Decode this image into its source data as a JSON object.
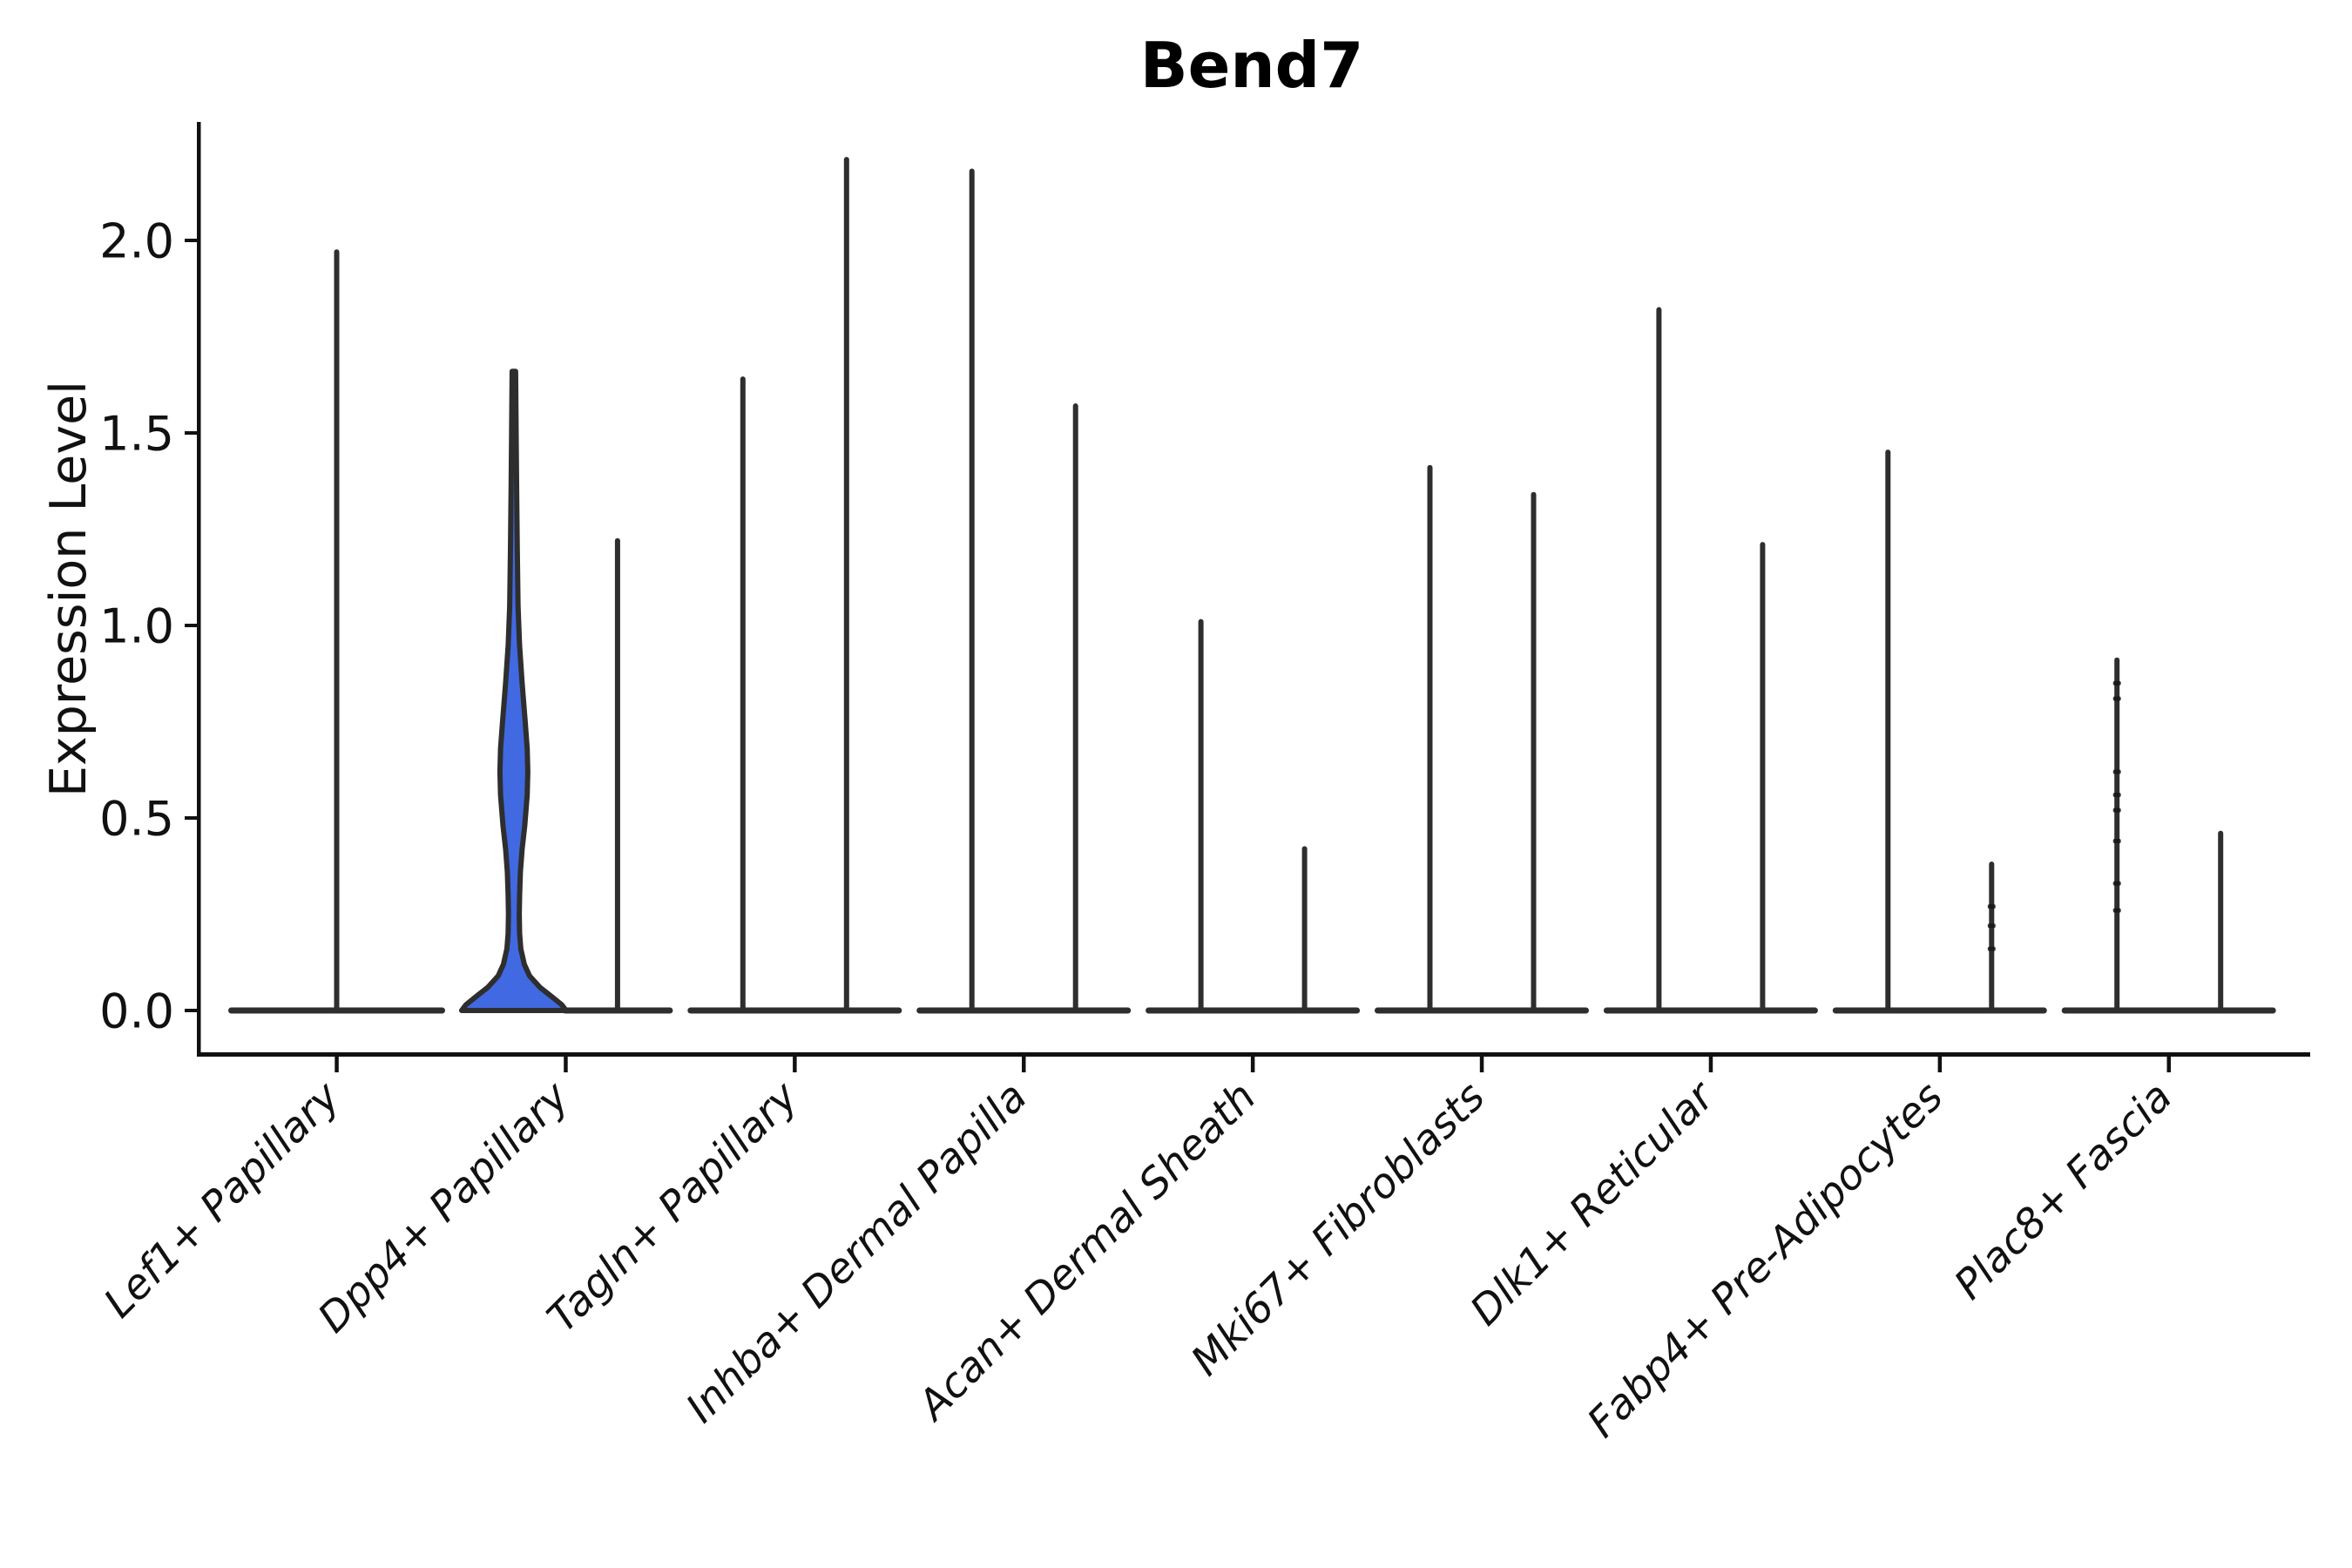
{
  "chart_data": {
    "type": "violin",
    "title": "Bend7",
    "ylabel": "Expression Level",
    "xlabel": "",
    "ylim": [
      -0.113,
      2.308
    ],
    "yticks": [
      {
        "value": 0.0,
        "label": "0.0"
      },
      {
        "value": 0.5,
        "label": "0.5"
      },
      {
        "value": 1.0,
        "label": "1.0"
      },
      {
        "value": 1.5,
        "label": "1.5"
      },
      {
        "value": 2.0,
        "label": "2.0"
      }
    ],
    "grid": false,
    "legend": "none",
    "categories": [
      "Lef1+ Papillary",
      "Dpp4+ Papillary",
      "Tagln+ Papillary",
      "Inhba+ Dermal Papilla",
      "Acan+ Dermal Sheath",
      "Mki67+ Fibroblasts",
      "Dlk1+ Reticular",
      "Fabp4+ Pre-Adipocytes",
      "Plac8+ Fascia"
    ],
    "groups_per_category": 2,
    "violins": [
      {
        "category_index": 0,
        "slot": "center",
        "max_expression": 1.97,
        "style": "spike",
        "base_half_width": 121
      },
      {
        "category_index": 1,
        "slot": "left",
        "max_expression": 1.66,
        "style": "filled",
        "base_half_width": 60,
        "fill_color": "#4169e1",
        "profile": [
          [
            1.66,
            2
          ],
          [
            1.5,
            2.6
          ],
          [
            1.35,
            3.2
          ],
          [
            1.2,
            3.9
          ],
          [
            1.05,
            4.8
          ],
          [
            0.95,
            6.5
          ],
          [
            0.85,
            9.5
          ],
          [
            0.75,
            13.0
          ],
          [
            0.68,
            15.3
          ],
          [
            0.62,
            16.0
          ],
          [
            0.56,
            15.3
          ],
          [
            0.48,
            12.5
          ],
          [
            0.42,
            9.5
          ],
          [
            0.36,
            7.5
          ],
          [
            0.3,
            6.6
          ],
          [
            0.25,
            6.2
          ],
          [
            0.2,
            6.6
          ],
          [
            0.16,
            8.0
          ],
          [
            0.12,
            12.0
          ],
          [
            0.09,
            18.0
          ],
          [
            0.06,
            30.0
          ],
          [
            0.035,
            44.0
          ],
          [
            0.015,
            55.0
          ],
          [
            0.0,
            60.0
          ]
        ]
      },
      {
        "category_index": 1,
        "slot": "right",
        "max_expression": 1.22,
        "style": "spike",
        "base_half_width": 60
      },
      {
        "category_index": 2,
        "slot": "left",
        "max_expression": 1.64,
        "style": "spike",
        "base_half_width": 60
      },
      {
        "category_index": 2,
        "slot": "right",
        "max_expression": 2.21,
        "style": "spike",
        "base_half_width": 60
      },
      {
        "category_index": 3,
        "slot": "left",
        "max_expression": 2.18,
        "style": "spike",
        "base_half_width": 60
      },
      {
        "category_index": 3,
        "slot": "right",
        "max_expression": 1.57,
        "style": "spike",
        "base_half_width": 60
      },
      {
        "category_index": 4,
        "slot": "left",
        "max_expression": 1.01,
        "style": "spike",
        "base_half_width": 60
      },
      {
        "category_index": 4,
        "slot": "right",
        "max_expression": 0.42,
        "style": "spike",
        "base_half_width": 60
      },
      {
        "category_index": 5,
        "slot": "left",
        "max_expression": 1.41,
        "style": "spike",
        "base_half_width": 60
      },
      {
        "category_index": 5,
        "slot": "right",
        "max_expression": 1.34,
        "style": "spike",
        "base_half_width": 60
      },
      {
        "category_index": 6,
        "slot": "left",
        "max_expression": 1.82,
        "style": "spike",
        "base_half_width": 60
      },
      {
        "category_index": 6,
        "slot": "right",
        "max_expression": 1.21,
        "style": "spike",
        "base_half_width": 60
      },
      {
        "category_index": 7,
        "slot": "left",
        "max_expression": 1.45,
        "style": "spike",
        "base_half_width": 60
      },
      {
        "category_index": 7,
        "slot": "right",
        "max_expression": 0.38,
        "style": "spike",
        "base_half_width": 60,
        "point_marks": [
          0.27,
          0.22,
          0.16
        ]
      },
      {
        "category_index": 8,
        "slot": "left",
        "max_expression": 0.91,
        "style": "spike",
        "base_half_width": 60,
        "point_marks": [
          0.85,
          0.81,
          0.62,
          0.56,
          0.52,
          0.44,
          0.33,
          0.26
        ]
      },
      {
        "category_index": 8,
        "slot": "right",
        "max_expression": 0.46,
        "style": "spike",
        "base_half_width": 60
      }
    ],
    "colors": {
      "violin_fill": "#4169e1",
      "violin_edge": "#2e2e2e",
      "axis": "#111111",
      "text": "#111111",
      "background": "#ffffff"
    }
  }
}
